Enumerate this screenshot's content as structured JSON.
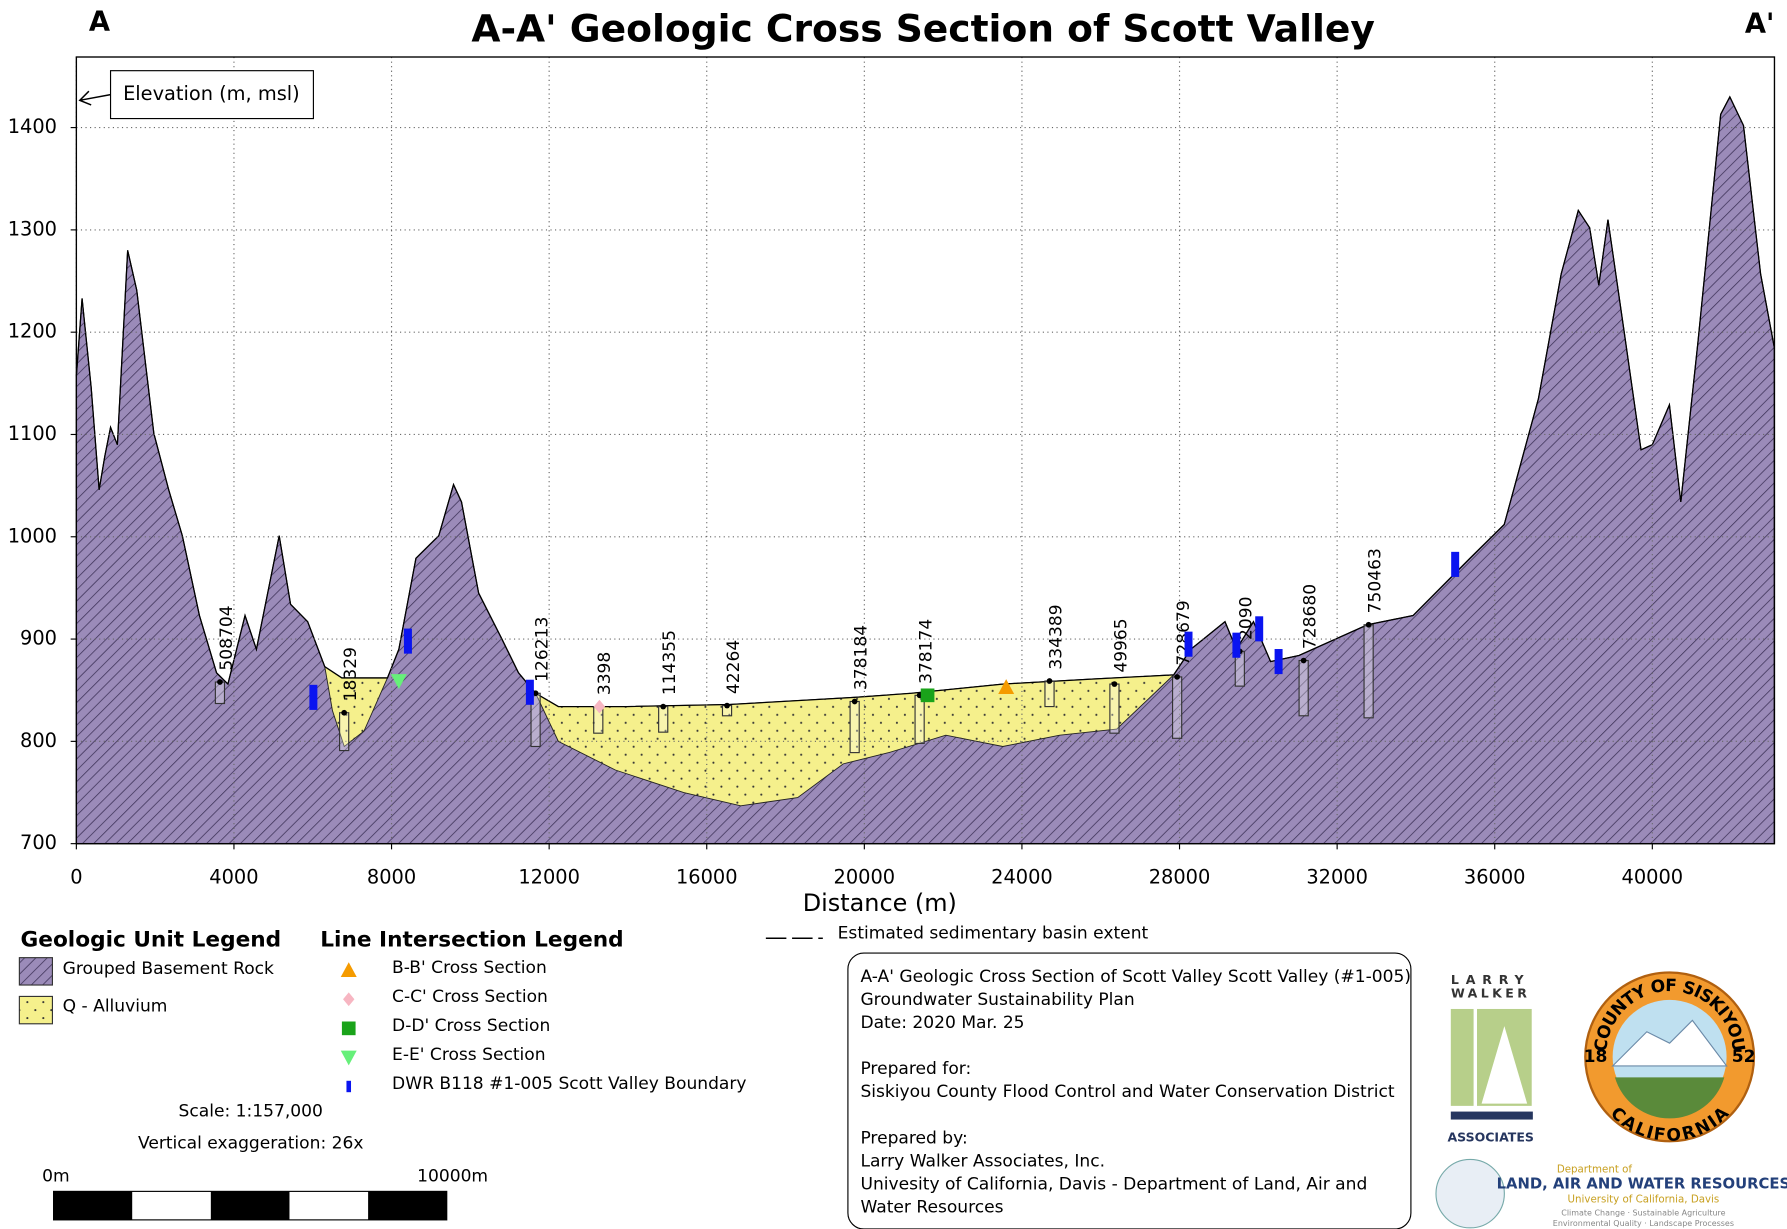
{
  "chart_data": {
    "type": "cross-section",
    "title": "A-A' Geologic Cross Section of Scott Valley",
    "left_label": "A",
    "right_label": "A'",
    "y_label": "Elevation (m, msl)",
    "x_label": "Distance (m)",
    "xlim": [
      0,
      43100
    ],
    "ylim": [
      700,
      1469
    ],
    "xticks": [
      0,
      4000,
      8000,
      12000,
      16000,
      20000,
      24000,
      28000,
      32000,
      36000,
      40000
    ],
    "yticks": [
      700,
      800,
      900,
      1000,
      1100,
      1200,
      1300,
      1400
    ],
    "grid": true,
    "surface": {
      "name": "Grouped Basement Rock",
      "color": "#9b8bb9",
      "x": [
        0,
        145,
        376,
        578,
        723,
        868,
        1041,
        1302,
        1533,
        1967,
        2343,
        2690,
        3124,
        3558,
        3847,
        4281,
        4570,
        5148,
        5437,
        5871,
        6305,
        6739,
        7173,
        7896,
        8185,
        8619,
        9198,
        9573,
        9776,
        10210,
        10788,
        11222,
        11656,
        12234,
        13970,
        16573,
        19754,
        21200,
        23514,
        25828,
        27852,
        28286,
        29154,
        29443,
        29877,
        30311,
        31034,
        32770,
        33927,
        35373,
        36241,
        37109,
        37687,
        38121,
        38410,
        38642,
        38874,
        39279,
        39713,
        40000,
        40434,
        40723,
        41157,
        41735,
        41967,
        42314,
        42748,
        43096
      ],
      "y": [
        1157,
        1233,
        1146,
        1046,
        1079,
        1107,
        1090,
        1280,
        1241,
        1101,
        1046,
        1001,
        923,
        867,
        856,
        923,
        890,
        1001,
        934,
        917,
        873,
        862,
        862,
        862,
        890,
        979,
        1001,
        1051,
        1034,
        945,
        901,
        867,
        847,
        834,
        834,
        836,
        843,
        847,
        856,
        861,
        865,
        890,
        917,
        890,
        917,
        878,
        884,
        914,
        923,
        979,
        1012,
        1135,
        1257,
        1319,
        1302,
        1246,
        1310,
        1202,
        1085,
        1090,
        1129,
        1034,
        1190,
        1413,
        1430,
        1402,
        1257,
        1185
      ]
    },
    "alluvium": {
      "name": "Q - Alluvium",
      "color": "#f5f08c",
      "x": [
        6305,
        6500,
        6800,
        7300,
        7896,
        null,
        11656,
        12234,
        13680,
        15416,
        16862,
        18308,
        19465,
        20622,
        22068,
        23514,
        24960,
        26406,
        27852
      ],
      "base": [
        873,
        830,
        795,
        810,
        862,
        null,
        847,
        800,
        772,
        750,
        737,
        745,
        778,
        789,
        806,
        795,
        806,
        812,
        865
      ]
    },
    "wells": [
      {
        "label": "508704",
        "x": 3644,
        "top": 858,
        "bottom": 837
      },
      {
        "label": "18329",
        "x": 6797,
        "top": 828,
        "bottom": 791
      },
      {
        "label": "126213",
        "x": 11656,
        "top": 847,
        "bottom": 795
      },
      {
        "label": "3398",
        "x": 13247,
        "top": 834,
        "bottom": 808
      },
      {
        "label": "114355",
        "x": 14895,
        "top": 834,
        "bottom": 809
      },
      {
        "label": "42264",
        "x": 16515,
        "top": 835,
        "bottom": 825
      },
      {
        "label": "378184",
        "x": 19754,
        "top": 839,
        "bottom": 789
      },
      {
        "label": "378174",
        "x": 21403,
        "top": 845,
        "bottom": 798
      },
      {
        "label": "334389",
        "x": 24700,
        "top": 859,
        "bottom": 834
      },
      {
        "label": "49965",
        "x": 26348,
        "top": 856,
        "bottom": 808
      },
      {
        "label": "728679",
        "x": 27939,
        "top": 863,
        "bottom": 803
      },
      {
        "label": "2090",
        "x": 29530,
        "top": 888,
        "bottom": 854
      },
      {
        "label": "728680",
        "x": 31150,
        "top": 879,
        "bottom": 825
      },
      {
        "label": "750463",
        "x": 32799,
        "top": 914,
        "bottom": 823
      }
    ],
    "intersections": [
      {
        "name": "B-B' Cross Section",
        "color": "#f59b00",
        "shape": "triangle",
        "points": [
          {
            "x": 23600,
            "y": 853
          }
        ]
      },
      {
        "name": "C-C' Cross Section",
        "color": "#f7b6c2",
        "shape": "diamond",
        "points": [
          {
            "x": 13276,
            "y": 834
          }
        ]
      },
      {
        "name": "D-D' Cross Section",
        "color": "#1aa31a",
        "shape": "square",
        "points": [
          {
            "x": 21605,
            "y": 845
          }
        ]
      },
      {
        "name": "E-E' Cross Section",
        "color": "#66f07a",
        "shape": "triangle-down",
        "points": [
          {
            "x": 8185,
            "y": 859
          }
        ]
      },
      {
        "name": "DWR B118 #1-005 Scott Valley Boundary",
        "color": "#0a14f0",
        "shape": "bar",
        "points": [
          {
            "x": 6016,
            "y": 843
          },
          {
            "x": 8416,
            "y": 898
          },
          {
            "x": 11511,
            "y": 848
          },
          {
            "x": 28228,
            "y": 895
          },
          {
            "x": 29443,
            "y": 894
          },
          {
            "x": 30022,
            "y": 910
          },
          {
            "x": 30514,
            "y": 878
          },
          {
            "x": 34996,
            "y": 973
          }
        ]
      }
    ],
    "unit_legend_title": "Geologic Unit Legend",
    "line_legend_title": "Line Intersection Legend",
    "basin_extent_label": "Estimated sedimentary basin extent"
  },
  "scale": {
    "text": "Scale: 1:157,000",
    "exaggeration": "Vertical exaggeration: 26x",
    "start": "0m",
    "end": "10000m"
  },
  "info_box": {
    "paragraphs": [
      [
        "A-A' Geologic Cross Section of Scott Valley Scott Valley (#1-005)",
        "Groundwater Sustainability Plan",
        "Date: 2020 Mar. 25"
      ],
      [
        "Prepared for:",
        "Siskiyou County Flood Control and Water Conservation District"
      ],
      [
        "Prepared by:",
        "Larry Walker Associates, Inc.",
        "Univesity of California, Davis - Department of Land, Air and",
        "Water Resources"
      ]
    ]
  },
  "logos": {
    "lwa_top": "LARRY",
    "lwa_mid": "WALKER",
    "lwa_bottom": "ASSOCIATES",
    "county_top": "COUNTY OF SISKIYOU",
    "county_bottom": "CALIFORNIA",
    "county_left": "18",
    "county_right": "52",
    "ucd_dept": "Department of",
    "ucd_name": "LAND, AIR AND WATER RESOURCES",
    "ucd_univ": "University of California, Davis",
    "ucd_tag1": "Climate Change · Sustainable Agriculture",
    "ucd_tag2": "Environmental Quality · Landscape Processes"
  }
}
